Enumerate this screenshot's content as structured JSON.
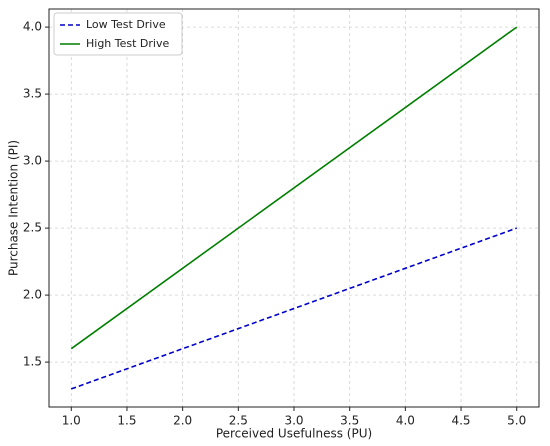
{
  "chart_data": {
    "type": "line",
    "x_label": "Perceived Usefulness (PU)",
    "y_label": "Purchase Intention (PI)",
    "x": [
      1.0,
      5.0
    ],
    "series": [
      {
        "name": "Low Test Drive",
        "color": "#0000cc",
        "dash": true,
        "values": [
          1.3,
          2.5
        ]
      },
      {
        "name": "High Test Drive",
        "color": "#007f00",
        "dash": false,
        "values": [
          1.6,
          4.0
        ]
      }
    ],
    "xlim": [
      0.8,
      5.2
    ],
    "xticks": [
      {
        "value": 1,
        "label": "1.0"
      },
      1.5,
      {
        "value": 2,
        "label": "2.0"
      },
      2.5,
      {
        "value": 3,
        "label": "3.0"
      },
      3.5,
      {
        "value": 4,
        "label": "4.0"
      },
      4.5,
      {
        "value": 5,
        "label": "5.0"
      }
    ],
    "ylim": [
      1.165,
      4.135
    ],
    "yticks": [
      1.5,
      {
        "value": 2,
        "label": "2.0"
      },
      2.5,
      {
        "value": 3,
        "label": "3.0"
      },
      3.5,
      {
        "value": 4,
        "label": "4.0"
      }
    ],
    "grid": true,
    "legend": "upper-left"
  }
}
